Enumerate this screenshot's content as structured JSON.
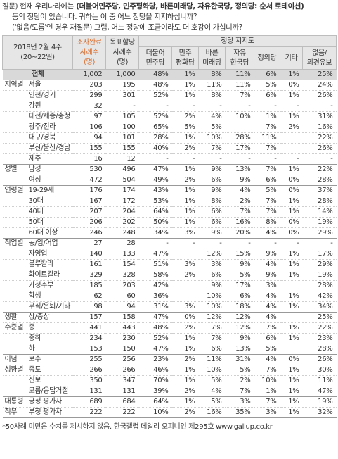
{
  "question": {
    "label": "질문)",
    "line1_pre": "현재 우리나라에는 ",
    "line1_bold": "(더불어민주당, 민주평화당, 바른미래당, 자유한국당, 정의당: 순서 로테이션)",
    "line2": "등의 정당이 있습니다. 귀하는 이 중 어느 정당을 지지하십니까?",
    "line3": "('없음/모름'인 경우 재질문) 그럼, 어느 정당에 조금이라도 더 호감이 가십니까?"
  },
  "header": {
    "period_line1": "2018년 2월 4주",
    "period_line2": "(20~22일)",
    "done_line1": "조사완료",
    "done_line2": "사례수",
    "done_line3": "(명)",
    "target_line1": "목표할당",
    "target_line2": "사례수",
    "target_line3": "(명)",
    "group_title": "정당 지지도",
    "parties": [
      [
        "더불어",
        "민주당"
      ],
      [
        "민주",
        "평화당"
      ],
      [
        "바른",
        "미래당"
      ],
      [
        "자유",
        "한국당"
      ],
      [
        "정의당",
        ""
      ],
      [
        "기타",
        ""
      ],
      [
        "없음/",
        "의견유보"
      ]
    ]
  },
  "rows": [
    {
      "g": "",
      "l": "전체",
      "d": "1,002",
      "t": "1,000",
      "v": [
        "48%",
        "1%",
        "8%",
        "11%",
        "6%",
        "1%",
        "25%"
      ],
      "total": true
    },
    {
      "g": "지역별",
      "l": "서울",
      "d": "203",
      "t": "195",
      "v": [
        "48%",
        "1%",
        "11%",
        "11%",
        "5%",
        "0%",
        "24%"
      ],
      "first": true
    },
    {
      "g": "",
      "l": "인천/경기",
      "d": "299",
      "t": "301",
      "v": [
        "52%",
        "1%",
        "8%",
        "7%",
        "6%",
        "1%",
        "26%"
      ]
    },
    {
      "g": "",
      "l": "강원",
      "d": "32",
      "t": "-",
      "v": [
        "-",
        "-",
        "-",
        "-",
        "-",
        "-",
        "-"
      ]
    },
    {
      "g": "",
      "l": "대전/세종/충청",
      "d": "97",
      "t": "105",
      "v": [
        "52%",
        "2%",
        "4%",
        "10%",
        "1%",
        "1%",
        "31%"
      ]
    },
    {
      "g": "",
      "l": "광주/전라",
      "d": "106",
      "t": "100",
      "v": [
        "65%",
        "5%",
        "5%",
        "",
        "7%",
        "2%",
        "16%"
      ]
    },
    {
      "g": "",
      "l": "대구/경북",
      "d": "94",
      "t": "101",
      "g2": "",
      "v": [
        "28%",
        "1%",
        "10%",
        "28%",
        "11%",
        "",
        "22%"
      ]
    },
    {
      "g": "",
      "l": "부산/울산/경남",
      "d": "155",
      "t": "155",
      "v": [
        "40%",
        "2%",
        "7%",
        "17%",
        "7%",
        "",
        "26%"
      ]
    },
    {
      "g": "",
      "l": "제주",
      "d": "16",
      "t": "12",
      "v": [
        "-",
        "-",
        "-",
        "-",
        "-",
        "-",
        "-"
      ]
    },
    {
      "g": "성별",
      "l": "남성",
      "d": "530",
      "t": "496",
      "v": [
        "47%",
        "1%",
        "9%",
        "13%",
        "7%",
        "1%",
        "22%"
      ],
      "first": true
    },
    {
      "g": "",
      "l": "여성",
      "d": "472",
      "t": "504",
      "v": [
        "49%",
        "2%",
        "6%",
        "9%",
        "6%",
        "0%",
        "28%"
      ]
    },
    {
      "g": "연령별",
      "l": "19-29세",
      "d": "176",
      "t": "174",
      "v": [
        "43%",
        "1%",
        "9%",
        "4%",
        "5%",
        "0%",
        "37%"
      ],
      "first": true
    },
    {
      "g": "",
      "l": "30대",
      "d": "167",
      "t": "172",
      "v": [
        "53%",
        "1%",
        "8%",
        "2%",
        "7%",
        "1%",
        "28%"
      ]
    },
    {
      "g": "",
      "l": "40대",
      "d": "207",
      "t": "204",
      "v": [
        "64%",
        "1%",
        "6%",
        "7%",
        "7%",
        "1%",
        "14%"
      ]
    },
    {
      "g": "",
      "l": "50대",
      "d": "206",
      "t": "202",
      "v": [
        "50%",
        "1%",
        "6%",
        "16%",
        "8%",
        "0%",
        "19%"
      ]
    },
    {
      "g": "",
      "l": "60대 이상",
      "d": "246",
      "t": "248",
      "v": [
        "34%",
        "3%",
        "9%",
        "20%",
        "4%",
        "0%",
        "29%"
      ]
    },
    {
      "g": "직업별",
      "l": "농/임/어업",
      "d": "27",
      "t": "28",
      "v": [
        "-",
        "-",
        "-",
        "-",
        "-",
        "-",
        "-"
      ],
      "first": true
    },
    {
      "g": "",
      "l": "자영업",
      "d": "140",
      "t": "133",
      "v": [
        "47%",
        "",
        "12%",
        "15%",
        "9%",
        "1%",
        "17%"
      ]
    },
    {
      "g": "",
      "l": "블루칼라",
      "d": "161",
      "t": "154",
      "v": [
        "51%",
        "3%",
        "3%",
        "9%",
        "4%",
        "1%",
        "29%"
      ]
    },
    {
      "g": "",
      "l": "화이트칼라",
      "d": "329",
      "t": "328",
      "v": [
        "58%",
        "2%",
        "6%",
        "5%",
        "9%",
        "1%",
        "19%"
      ]
    },
    {
      "g": "",
      "l": "가정주부",
      "d": "185",
      "t": "203",
      "v": [
        "42%",
        "",
        "9%",
        "17%",
        "3%",
        "",
        "28%"
      ]
    },
    {
      "g": "",
      "l": "학생",
      "d": "62",
      "t": "60",
      "v": [
        "36%",
        "",
        "10%",
        "6%",
        "4%",
        "1%",
        "42%"
      ]
    },
    {
      "g": "",
      "l": "무직/은퇴/기타",
      "d": "98",
      "t": "94",
      "v": [
        "31%",
        "3%",
        "10%",
        "18%",
        "4%",
        "1%",
        "34%"
      ]
    },
    {
      "g": "생활",
      "l": "상/중상",
      "d": "157",
      "t": "158",
      "v": [
        "47%",
        "0%",
        "12%",
        "12%",
        "4%",
        "",
        "25%"
      ],
      "first": true
    },
    {
      "g": "수준별",
      "l": "중",
      "d": "441",
      "t": "443",
      "v": [
        "48%",
        "2%",
        "7%",
        "12%",
        "7%",
        "1%",
        "22%"
      ]
    },
    {
      "g": "",
      "l": "중하",
      "d": "234",
      "t": "230",
      "v": [
        "52%",
        "1%",
        "7%",
        "9%",
        "6%",
        "1%",
        "23%"
      ]
    },
    {
      "g": "",
      "l": "하",
      "d": "153",
      "t": "150",
      "v": [
        "47%",
        "1%",
        "6%",
        "13%",
        "5%",
        "",
        "28%"
      ]
    },
    {
      "g": "이념",
      "l": "보수",
      "d": "255",
      "t": "256",
      "v": [
        "23%",
        "2%",
        "11%",
        "31%",
        "4%",
        "0%",
        "26%"
      ],
      "first": true
    },
    {
      "g": "성향별",
      "l": "중도",
      "d": "266",
      "t": "266",
      "v": [
        "46%",
        "1%",
        "10%",
        "5%",
        "7%",
        "1%",
        "30%"
      ]
    },
    {
      "g": "",
      "l": "진보",
      "d": "350",
      "t": "347",
      "v": [
        "70%",
        "1%",
        "5%",
        "2%",
        "10%",
        "1%",
        "11%"
      ]
    },
    {
      "g": "",
      "l": "모름/응답거절",
      "d": "131",
      "t": "131",
      "v": [
        "39%",
        "2%",
        "4%",
        "7%",
        "1%",
        "1%",
        "47%"
      ]
    },
    {
      "g": "대통령",
      "l": "긍정 평가자",
      "d": "689",
      "t": "684",
      "v": [
        "64%",
        "1%",
        "5%",
        "3%",
        "7%",
        "1%",
        "19%"
      ],
      "first": true
    },
    {
      "g": "직무",
      "l": "부정 평가자",
      "d": "222",
      "t": "222",
      "v": [
        "10%",
        "2%",
        "16%",
        "35%",
        "3%",
        "1%",
        "32%"
      ],
      "last": true
    }
  ],
  "footnote": "*50사례 미만은 수치를 제시하지 않음. 한국갤럽 데일리 오피니언 제295호 www.gallup.co.kr"
}
